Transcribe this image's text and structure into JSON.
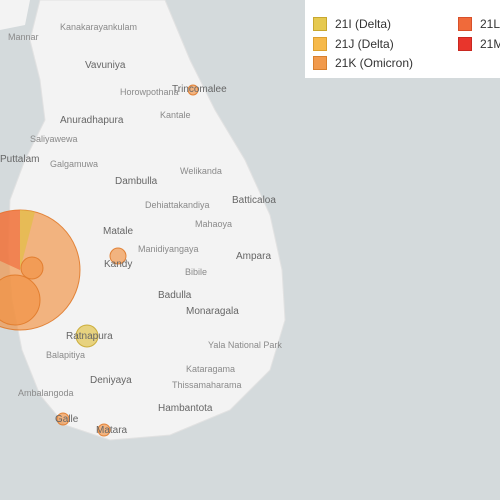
{
  "map": {
    "places": [
      "Mannar",
      "Kanakarayankulam",
      "Vavuniya",
      "Horowpothana",
      "Trincomalee",
      "Anuradhapura",
      "Kantale",
      "Saliyawewa",
      "Puttalam",
      "Galgamuwa",
      "Dambulla",
      "Welikanda",
      "Batticaloa",
      "Matale",
      "Dehiattakandiya",
      "Mahaoya",
      "Manidiyangaya",
      "Kandy",
      "Ampara",
      "Bibile",
      "Badulla",
      "Monaragala",
      "Ratnapura",
      "Yala National Park",
      "Deniyaya",
      "Balapitiya",
      "Ambalangoda",
      "Kataragama",
      "Thissamaharama",
      "Hambantota",
      "Galle",
      "Matara"
    ]
  },
  "legend": {
    "items": [
      "21I (Delta)",
      "21J (Delta)",
      "21K (Omicron)",
      "21L",
      "21M"
    ]
  }
}
